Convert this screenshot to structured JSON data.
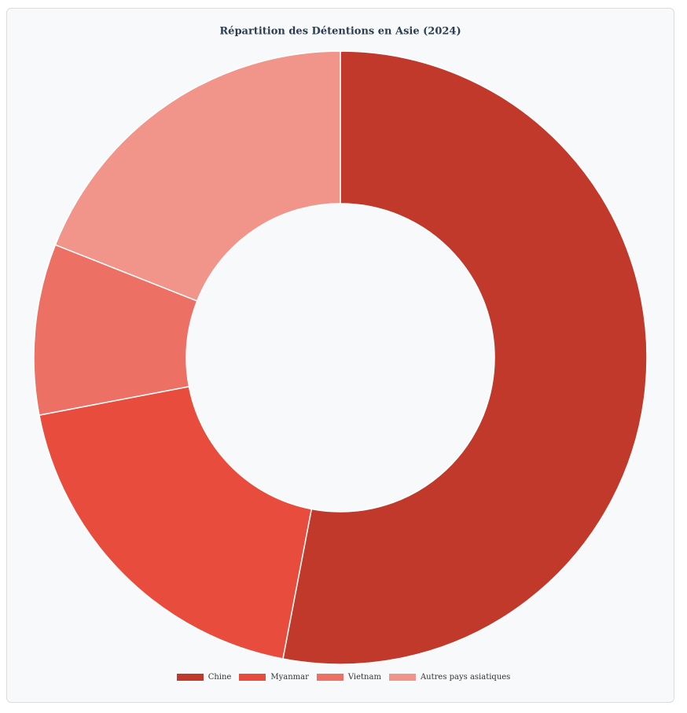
{
  "chart_data": {
    "type": "donut",
    "title": "Répartition des Détentions en Asie (2024)",
    "categories": [
      "Chine",
      "Myanmar",
      "Vietnam",
      "Autres pays asiatiques"
    ],
    "values": [
      53,
      19,
      9,
      19
    ],
    "colors": [
      "#c0392b",
      "#e74c3c",
      "#ec7063",
      "#f1948a"
    ]
  }
}
